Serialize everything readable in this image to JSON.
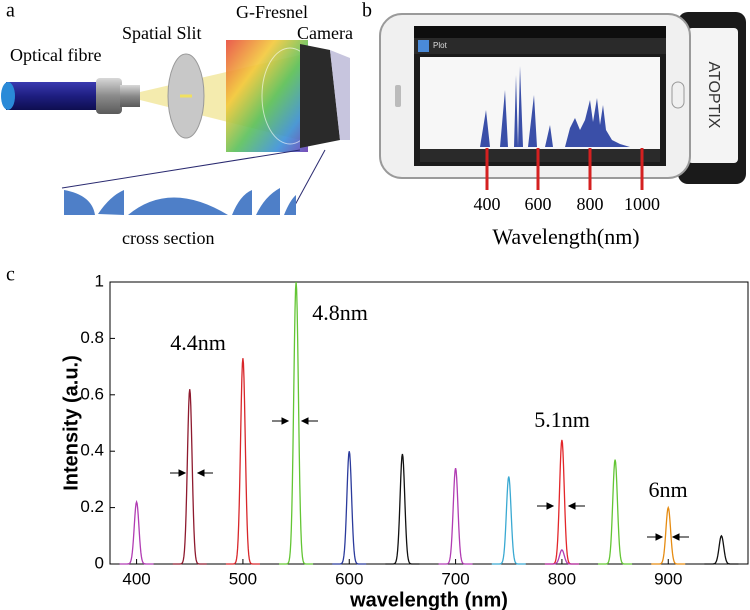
{
  "panels": {
    "a": {
      "label": "a",
      "optical_fibre": "Optical fibre",
      "spatial_slit": "Spatial Slit",
      "g_fresnel": "G-Fresnel",
      "camera": "Camera",
      "cross_section": "cross section"
    },
    "b": {
      "label": "b",
      "app_title": "Plot",
      "brand": "ATOPTIX",
      "wavelength_marks": [
        400,
        600,
        800,
        1000
      ],
      "axis_label": "Wavelength(nm)"
    },
    "c": {
      "label": "c"
    }
  },
  "chart_data": {
    "type": "peaks",
    "xlabel": "wavelength (nm)",
    "ylabel": "Intensity (a.u.)",
    "peaks": [
      {
        "x": 400,
        "y": 0.22,
        "color": "#b13cb3"
      },
      {
        "x": 450,
        "y": 0.62,
        "color": "#8e1a2e"
      },
      {
        "x": 500,
        "y": 0.73,
        "color": "#d8262a"
      },
      {
        "x": 550,
        "y": 1.0,
        "color": "#63c534"
      },
      {
        "x": 600,
        "y": 0.4,
        "color": "#2b3b9c"
      },
      {
        "x": 650,
        "y": 0.39,
        "color": "#111111"
      },
      {
        "x": 700,
        "y": 0.34,
        "color": "#b13cb3"
      },
      {
        "x": 750,
        "y": 0.31,
        "color": "#3aa9d2"
      },
      {
        "x": 800,
        "y": 0.44,
        "color": "#e3262a"
      },
      {
        "x": 800,
        "y": 0.05,
        "color": "#b13cb3"
      },
      {
        "x": 850,
        "y": 0.37,
        "color": "#63c534"
      },
      {
        "x": 900,
        "y": 0.2,
        "color": "#e68c12"
      },
      {
        "x": 950,
        "y": 0.1,
        "color": "#111111"
      }
    ],
    "annotations": [
      "4.4nm",
      "4.8nm",
      "5.1nm",
      "6nm"
    ],
    "xlim": [
      375,
      975
    ],
    "ylim": [
      0,
      1
    ],
    "xticks": [
      400,
      500,
      600,
      700,
      800,
      900
    ],
    "yticks": [
      0,
      0.2,
      0.4,
      0.6,
      0.8,
      1
    ]
  }
}
